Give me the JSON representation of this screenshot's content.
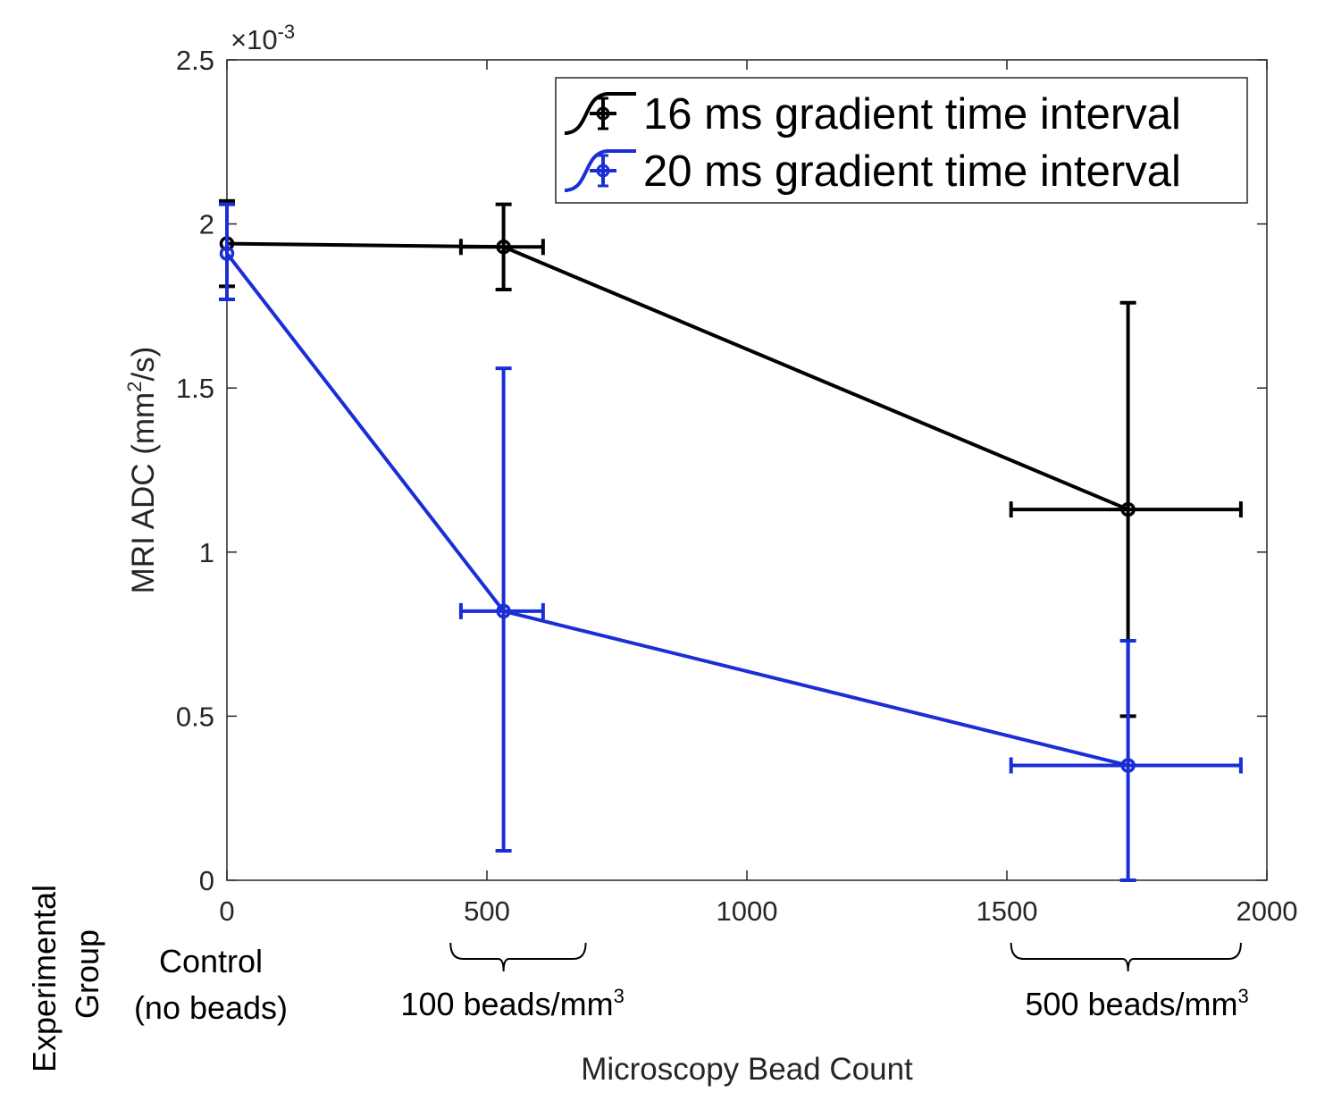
{
  "chart_data": {
    "type": "line",
    "xlabel": "Microscopy Bead Count",
    "ylabel": "MRI ADC (mm2/s)",
    "ylabel_parts": {
      "pre": "MRI ADC (mm",
      "sup": "2",
      "post": "/s)"
    },
    "y_exponent": {
      "base": "×10",
      "power": "-3"
    },
    "xlim": [
      0,
      2000
    ],
    "ylim": [
      0,
      2.5
    ],
    "y_scale_note": "values shown in units of 10^-3",
    "xticks": [
      "0",
      "500",
      "1000",
      "1500",
      "2000"
    ],
    "yticks": [
      "0",
      "0.5",
      "1",
      "1.5",
      "2",
      "2.5"
    ],
    "legend_position": "top-right",
    "grid": false,
    "series": [
      {
        "name": "16 ms gradient time interval",
        "color": "#000000",
        "points": [
          {
            "x": 0,
            "y": 1.94,
            "xerr": [
              0,
              0
            ],
            "yerr": [
              1.81,
              2.07
            ]
          },
          {
            "x": 532,
            "y": 1.93,
            "xerr": [
              450,
              608
            ],
            "yerr": [
              1.8,
              2.06
            ]
          },
          {
            "x": 1733,
            "y": 1.13,
            "xerr": [
              1508,
              1950
            ],
            "yerr": [
              0.5,
              1.76
            ]
          }
        ]
      },
      {
        "name": "20 ms gradient time interval",
        "color": "#1a2ed6",
        "points": [
          {
            "x": 0,
            "y": 1.91,
            "xerr": [
              0,
              0
            ],
            "yerr": [
              1.77,
              2.06
            ]
          },
          {
            "x": 532,
            "y": 0.82,
            "xerr": [
              450,
              608
            ],
            "yerr": [
              0.09,
              1.56
            ]
          },
          {
            "x": 1733,
            "y": 0.35,
            "xerr": [
              1508,
              1950
            ],
            "yerr": [
              0.0,
              0.73
            ]
          }
        ]
      }
    ],
    "experimental_group": {
      "title_line1": "Experimental",
      "title_line2": "Group",
      "groups": [
        {
          "line1": "Control",
          "line2": "(no beads)",
          "x": 0,
          "bracket": null
        },
        {
          "line1": "100 beads/mm",
          "sup": "3",
          "x": 532,
          "bracket": [
            430,
            690
          ]
        },
        {
          "line1": "500 beads/mm",
          "sup": "3",
          "x": 1733,
          "bracket": [
            1508,
            1950
          ]
        }
      ]
    }
  }
}
